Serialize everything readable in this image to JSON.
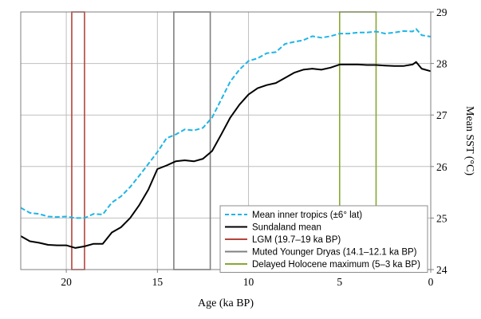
{
  "chart_data": {
    "type": "line",
    "xlabel": "Age (ka BP)",
    "ylabel": "Mean SST (°C)",
    "xlim": [
      22.5,
      0
    ],
    "ylim": [
      24,
      29
    ],
    "x_ticks": [
      20,
      15,
      10,
      5,
      0
    ],
    "y_ticks": [
      24,
      25,
      26,
      27,
      28,
      29
    ],
    "y_axis_side": "right",
    "grid": true,
    "legend_position": "bottom-right",
    "series": [
      {
        "name": "Mean inner tropics (±6° lat)",
        "color": "#1fb5e6",
        "style": "dashed",
        "x": [
          22.5,
          22,
          21.5,
          21,
          20.5,
          20,
          19.5,
          19,
          18.5,
          18,
          17.5,
          17,
          16.5,
          16,
          15.5,
          15,
          14.5,
          14,
          13.5,
          13,
          12.5,
          12,
          11.5,
          11,
          10.5,
          10,
          9.5,
          9,
          8.5,
          8,
          7.5,
          7,
          6.5,
          6,
          5.5,
          5,
          4.5,
          4,
          3.5,
          3,
          2.5,
          2,
          1.5,
          1,
          0.8,
          0.5,
          0
        ],
        "y": [
          25.2,
          25.1,
          25.08,
          25.03,
          25.02,
          25.03,
          25.0,
          25.0,
          25.08,
          25.07,
          25.3,
          25.42,
          25.6,
          25.82,
          26.05,
          26.28,
          26.55,
          26.62,
          26.72,
          26.7,
          26.75,
          26.95,
          27.3,
          27.65,
          27.88,
          28.05,
          28.1,
          28.2,
          28.22,
          28.38,
          28.42,
          28.45,
          28.53,
          28.5,
          28.53,
          28.58,
          28.58,
          28.6,
          28.6,
          28.62,
          28.58,
          28.6,
          28.63,
          28.62,
          28.67,
          28.55,
          28.52
        ]
      },
      {
        "name": "Sundaland mean",
        "color": "#000000",
        "style": "solid",
        "x": [
          22.5,
          22,
          21.5,
          21,
          20.5,
          20,
          19.5,
          19,
          18.5,
          18,
          17.5,
          17,
          16.5,
          16,
          15.5,
          15,
          14.5,
          14,
          13.5,
          13,
          12.5,
          12,
          11.5,
          11,
          10.5,
          10,
          9.5,
          9,
          8.5,
          8,
          7.5,
          7,
          6.5,
          6,
          5.5,
          5,
          4.5,
          4,
          3.5,
          3,
          2.5,
          2,
          1.5,
          1,
          0.8,
          0.5,
          0
        ],
        "y": [
          24.65,
          24.55,
          24.52,
          24.48,
          24.47,
          24.47,
          24.42,
          24.45,
          24.5,
          24.5,
          24.72,
          24.82,
          25.0,
          25.25,
          25.55,
          25.95,
          26.02,
          26.1,
          26.12,
          26.1,
          26.15,
          26.3,
          26.62,
          26.95,
          27.2,
          27.4,
          27.52,
          27.58,
          27.62,
          27.72,
          27.82,
          27.88,
          27.9,
          27.88,
          27.92,
          27.98,
          27.98,
          27.98,
          27.97,
          27.97,
          27.96,
          27.95,
          27.95,
          27.98,
          28.03,
          27.9,
          27.85
        ]
      }
    ],
    "highlight_ranges": [
      {
        "name": "LGM (19.7–19 ka BP)",
        "start": 19.7,
        "end": 19.0,
        "color": "#b5443b"
      },
      {
        "name": "Muted Younger Dryas (14.1–12.1 ka BP)",
        "start": 14.1,
        "end": 12.1,
        "color": "#808080"
      },
      {
        "name": "Delayed Holocene maximum (5–3 ka BP)",
        "start": 5.0,
        "end": 3.0,
        "color": "#86a832"
      }
    ]
  }
}
